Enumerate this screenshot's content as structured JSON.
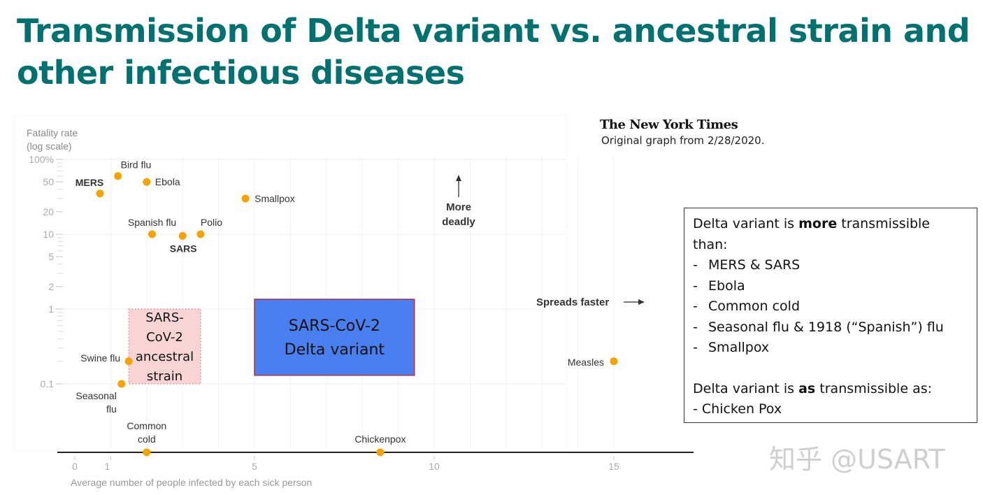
{
  "title": "Transmission of Delta variant vs. ancestral strain and other infectious diseases",
  "source": {
    "logo": "The New York Times",
    "note": "Original graph from 2/28/2020."
  },
  "notes": {
    "more_prefix": "Delta variant is ",
    "more_bold": "more",
    "more_suffix": " transmissible than:",
    "more_items": [
      "MERS & SARS",
      "Ebola",
      "Common cold",
      "Seasonal flu & 1918 (“Spanish”) flu",
      "Smallpox"
    ],
    "as_prefix": "Delta variant is ",
    "as_bold": "as",
    "as_suffix": " transmissible as:",
    "as_items": [
      "- Chicken Pox"
    ]
  },
  "watermark": "知乎 @USART",
  "chart_data": {
    "type": "scatter",
    "ylabel": [
      "Fatality rate",
      "(log scale)"
    ],
    "xlabel": "Average number of people infected by each sick person",
    "y_scale": "log",
    "xlim": [
      0,
      17
    ],
    "ylim": [
      0.1,
      100
    ],
    "x_ticks": [
      "0",
      "1",
      "5",
      "10",
      "15"
    ],
    "x_tick_values": [
      0,
      1,
      5,
      10,
      15
    ],
    "y_ticks": [
      "100%",
      "50",
      "20",
      "10",
      "5",
      "2",
      "1",
      "0.1"
    ],
    "y_tick_values": [
      100,
      50,
      20,
      10,
      5,
      2,
      1,
      0.1
    ],
    "zero_line": true,
    "point_color": "#f5a300",
    "points": [
      {
        "name": "MERS",
        "x": 0.7,
        "y": 35,
        "bold": true
      },
      {
        "name": "Bird flu",
        "x": 1.2,
        "y": 60
      },
      {
        "name": "Ebola",
        "x": 2.0,
        "y": 50
      },
      {
        "name": "Smallpox",
        "x": 4.75,
        "y": 30
      },
      {
        "name": "Spanish flu",
        "x": 2.15,
        "y": 10
      },
      {
        "name": "SARS",
        "x": 3.0,
        "y": 9.5,
        "bold": true
      },
      {
        "name": "Polio",
        "x": 3.5,
        "y": 10
      },
      {
        "name": "Swine flu",
        "x": 1.5,
        "y": 0.2
      },
      {
        "name": "Seasonal flu",
        "x": 1.3,
        "y": 0.1
      },
      {
        "name": "Common cold",
        "x": 2.0,
        "y": 0
      },
      {
        "name": "Chickenpox",
        "x": 8.5,
        "y": 0
      },
      {
        "name": "Measles",
        "x": 15,
        "y": 0.2
      }
    ],
    "annotations": {
      "more_deadly": [
        "More",
        "deadly"
      ],
      "spreads_faster": "Spreads faster"
    },
    "regions": [
      {
        "name": "SARS-CoV-2 ancestral strain",
        "lines": [
          "SARS-",
          "CoV-2",
          "ancestral",
          "strain"
        ],
        "x": [
          1.5,
          3.5
        ],
        "y": [
          0.1,
          1
        ],
        "fill": "#f8d4d4",
        "stroke": "#e08a8a"
      },
      {
        "name": "SARS-CoV-2 Delta variant",
        "lines": [
          "SARS-CoV-2",
          "Delta variant"
        ],
        "x": [
          5,
          9.45
        ],
        "y": [
          0.13,
          1.35
        ],
        "fill": "#4a7ff0",
        "stroke": "#b03040"
      }
    ]
  }
}
